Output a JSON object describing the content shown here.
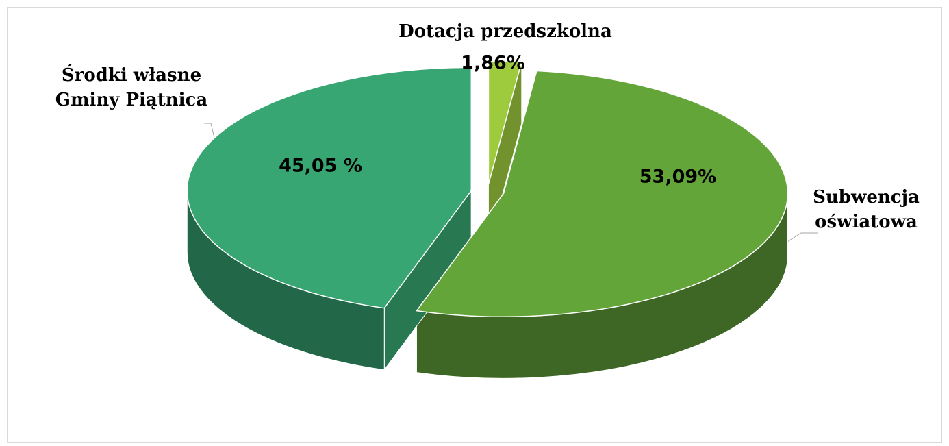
{
  "chart_data": {
    "type": "pie",
    "categories": [
      "Dotacja przedszkolna",
      "Subwencja oświatowa",
      "Środki własne Gminy Piątnica"
    ],
    "values": [
      1.86,
      53.09,
      45.05
    ],
    "value_labels": [
      "1,86%",
      "53,09%",
      "45,05 %"
    ],
    "colors": [
      "#9dcb3d",
      "#64a53a",
      "#37a672"
    ]
  }
}
